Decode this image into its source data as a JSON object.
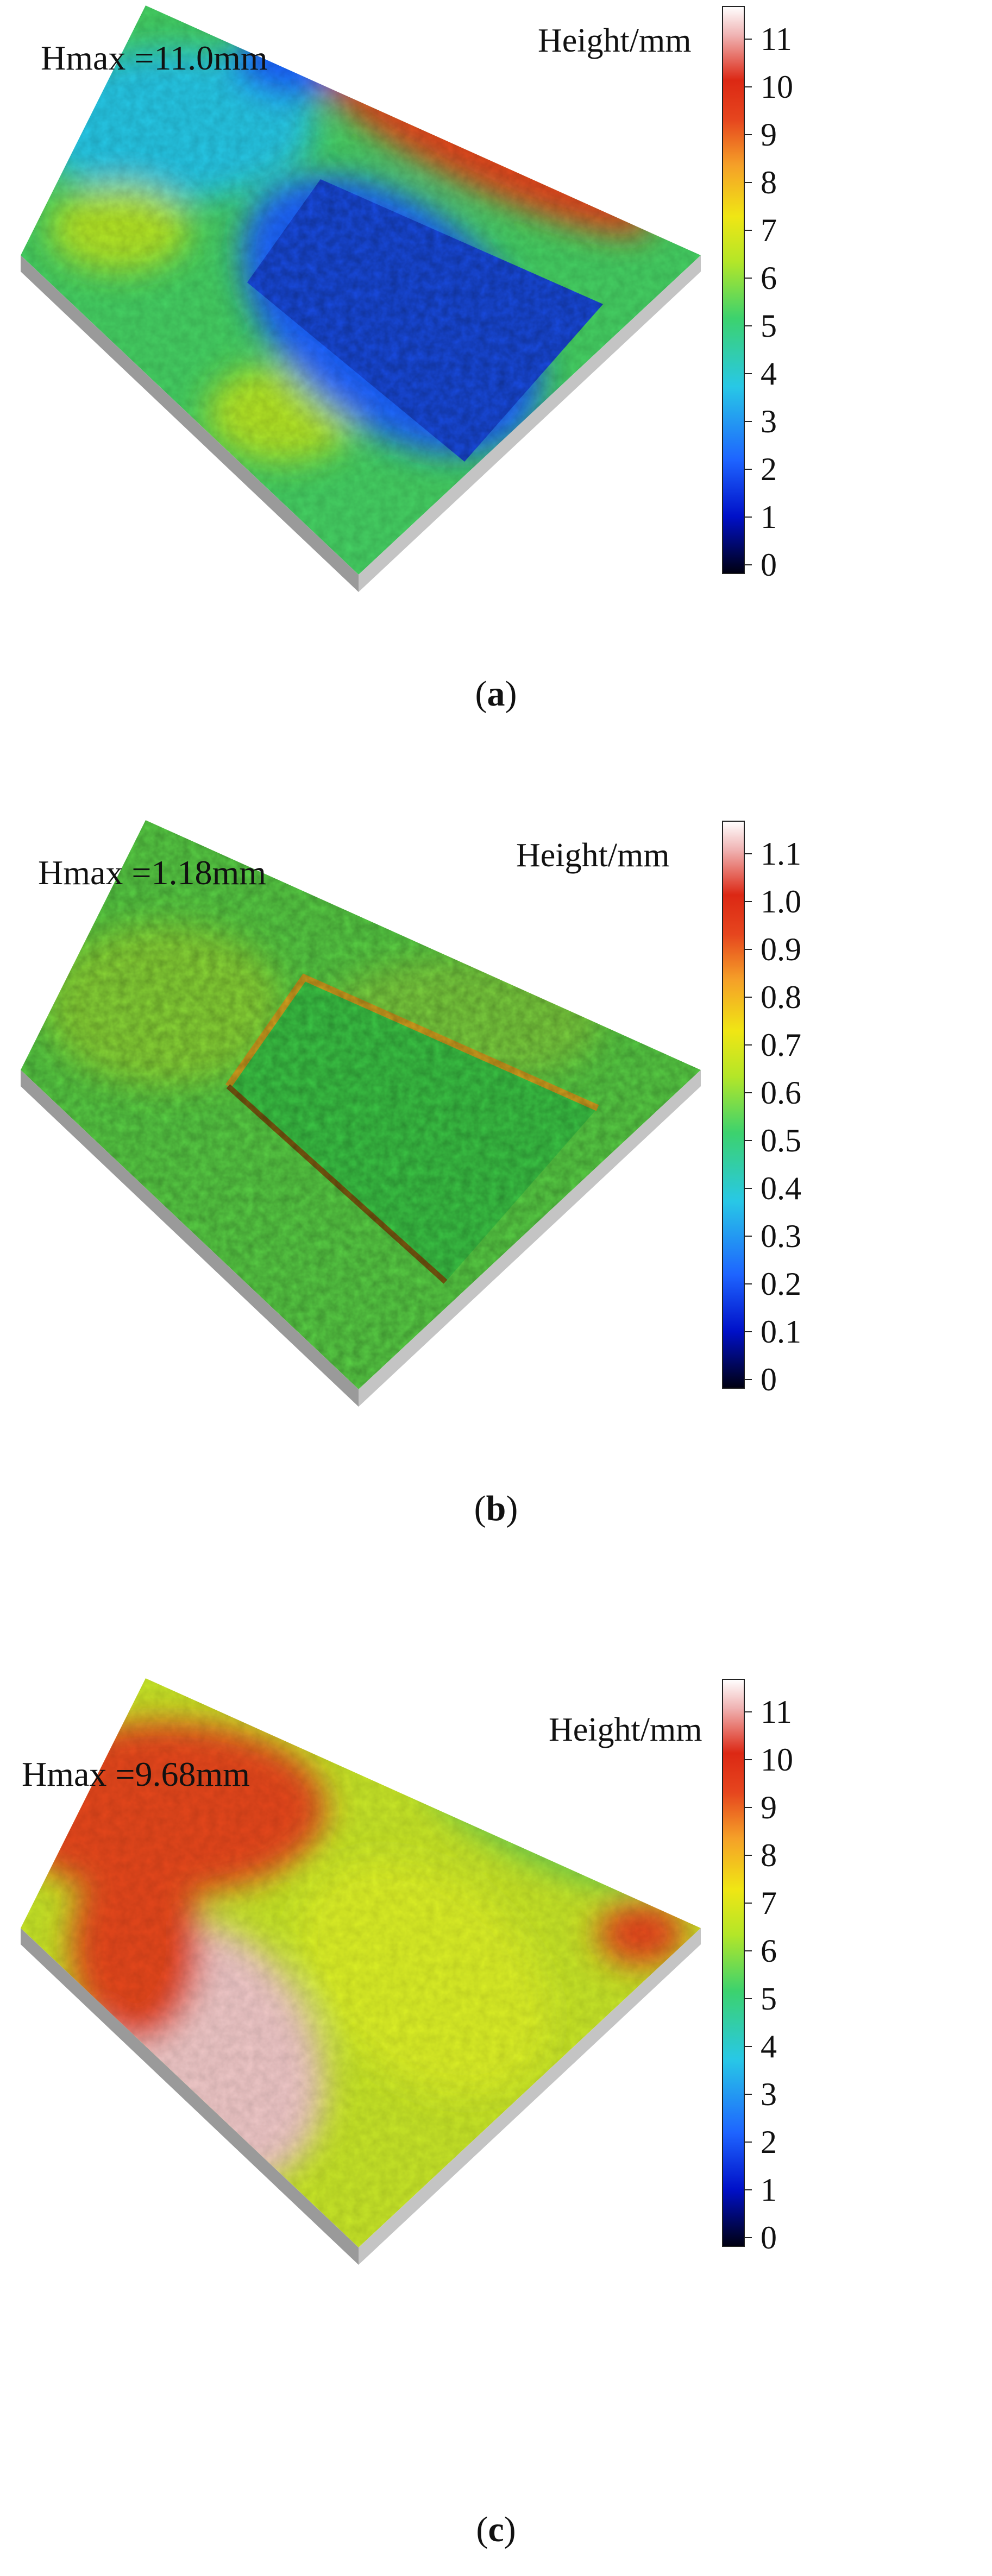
{
  "panels": [
    {
      "hmax": "Hmax =11.0mm",
      "colorbar_title": "Height/mm",
      "ticks": [
        "11",
        "10",
        "9",
        "8",
        "7",
        "6",
        "5",
        "4",
        "3",
        "2",
        "1",
        "0"
      ],
      "caption_open": "(",
      "caption_letter": "a",
      "caption_close": ")"
    },
    {
      "hmax": "Hmax =1.18mm",
      "colorbar_title": "Height/mm",
      "ticks": [
        "1.1",
        "1.0",
        "0.9",
        "0.8",
        "0.7",
        "0.6",
        "0.5",
        "0.4",
        "0.3",
        "0.2",
        "0.1",
        "0"
      ],
      "caption_open": "(",
      "caption_letter": "b",
      "caption_close": ")"
    },
    {
      "hmax": "Hmax =9.68mm",
      "colorbar_title": "Height/mm",
      "ticks": [
        "11",
        "10",
        "9",
        "8",
        "7",
        "6",
        "5",
        "4",
        "3",
        "2",
        "1",
        "0"
      ],
      "caption_open": "(",
      "caption_letter": "c",
      "caption_close": ")"
    }
  ],
  "colors": {
    "colormap": [
      "#000010",
      "#0010c8",
      "#1e64ff",
      "#28c8e6",
      "#3cd26e",
      "#b4e628",
      "#f0e614",
      "#f5a028",
      "#e6461e",
      "#dc2814",
      "#f0b4b4",
      "#ffffff"
    ]
  }
}
